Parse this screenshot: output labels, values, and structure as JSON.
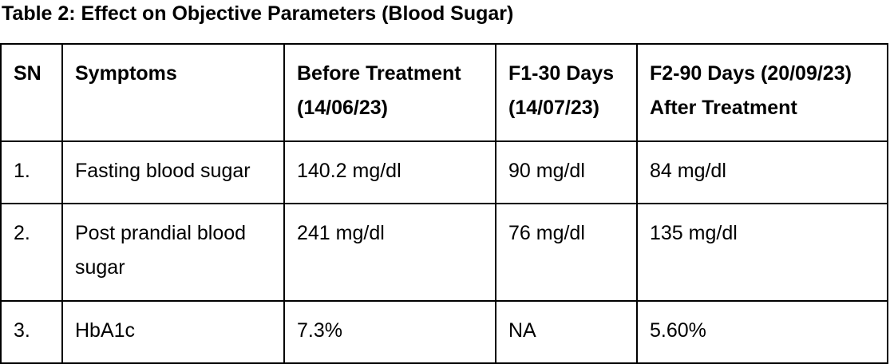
{
  "caption": "Table 2: Effect on Objective Parameters (Blood Sugar)",
  "table": {
    "headers": {
      "sn": "SN",
      "symptoms": "Symptoms",
      "before_line1": "Before Treatment",
      "before_line2": "(14/06/23)",
      "f1_line1": "F1-30 Days",
      "f1_line2": "(14/07/23)",
      "f2_line1": "F2-90 Days (20/09/23)",
      "f2_line2": "After Treatment"
    },
    "rows": [
      {
        "sn": "1.",
        "symptom": "Fasting blood sugar",
        "before": "140.2 mg/dl",
        "f1": "90 mg/dl",
        "f2": "84 mg/dl"
      },
      {
        "sn": "2.",
        "symptom": "Post prandial blood sugar",
        "before": "241 mg/dl",
        "f1": "76 mg/dl",
        "f2": "135 mg/dl"
      },
      {
        "sn": "3.",
        "symptom": "HbA1c",
        "before": "7.3%",
        "f1": "NA",
        "f2": "5.60%"
      }
    ]
  }
}
